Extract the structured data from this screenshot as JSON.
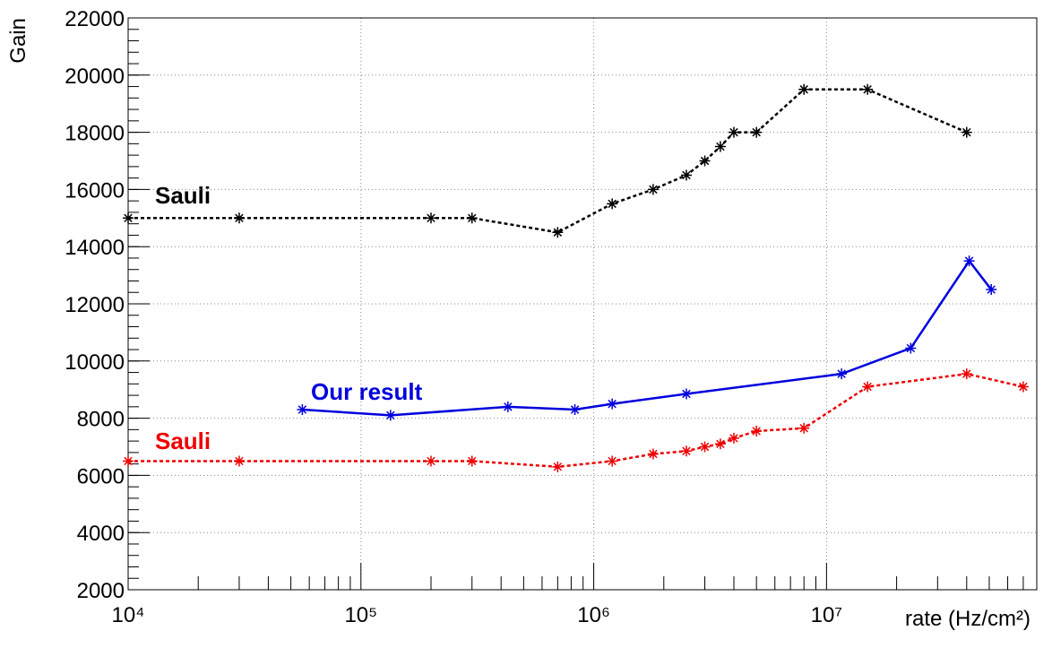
{
  "chart_data": {
    "type": "line",
    "xlabel": "rate (Hz/cm²)",
    "ylabel": "Gain",
    "xlog": true,
    "grid": true,
    "xlim": [
      10000,
      80000000
    ],
    "ylim": [
      2000,
      22000
    ],
    "xticks": [
      {
        "value": 10000,
        "label": "10⁴"
      },
      {
        "value": 100000,
        "label": "10⁵"
      },
      {
        "value": 1000000,
        "label": "10⁶"
      },
      {
        "value": 10000000,
        "label": "10⁷"
      }
    ],
    "yticks": [
      2000,
      4000,
      6000,
      8000,
      10000,
      12000,
      14000,
      16000,
      18000,
      20000,
      22000
    ],
    "series": [
      {
        "name": "Sauli",
        "color": "#000000",
        "dash": "dotted",
        "x": [
          10000,
          30000,
          200000,
          300000,
          700000,
          1200000,
          1800000,
          2500000,
          3000000,
          3500000,
          4000000,
          5000000,
          8000000,
          15000000,
          40000000
        ],
        "values": [
          15000,
          15000,
          15000,
          15000,
          14500,
          15500,
          16000,
          16500,
          17000,
          17500,
          18000,
          18000,
          19500,
          19500,
          18000
        ]
      },
      {
        "name": "Our result",
        "color": "#0000dd",
        "dash": "solid",
        "x": [
          56000,
          134000,
          428000,
          830000,
          1200000,
          2500000,
          11600000,
          23000000,
          41000000,
          51000000
        ],
        "values": [
          8300,
          8100,
          8400,
          8300,
          8500,
          8850,
          9550,
          10450,
          13500,
          12500
        ]
      },
      {
        "name": "Sauli",
        "color": "#ee0000",
        "dash": "dotted",
        "x": [
          10000,
          30000,
          200000,
          300000,
          700000,
          1200000,
          1800000,
          2500000,
          3000000,
          3500000,
          4000000,
          5000000,
          8000000,
          15000000,
          40000000,
          70000000
        ],
        "values": [
          6500,
          6500,
          6500,
          6500,
          6300,
          6500,
          6750,
          6850,
          7000,
          7100,
          7300,
          7550,
          7650,
          9100,
          9550,
          9100
        ]
      }
    ]
  }
}
